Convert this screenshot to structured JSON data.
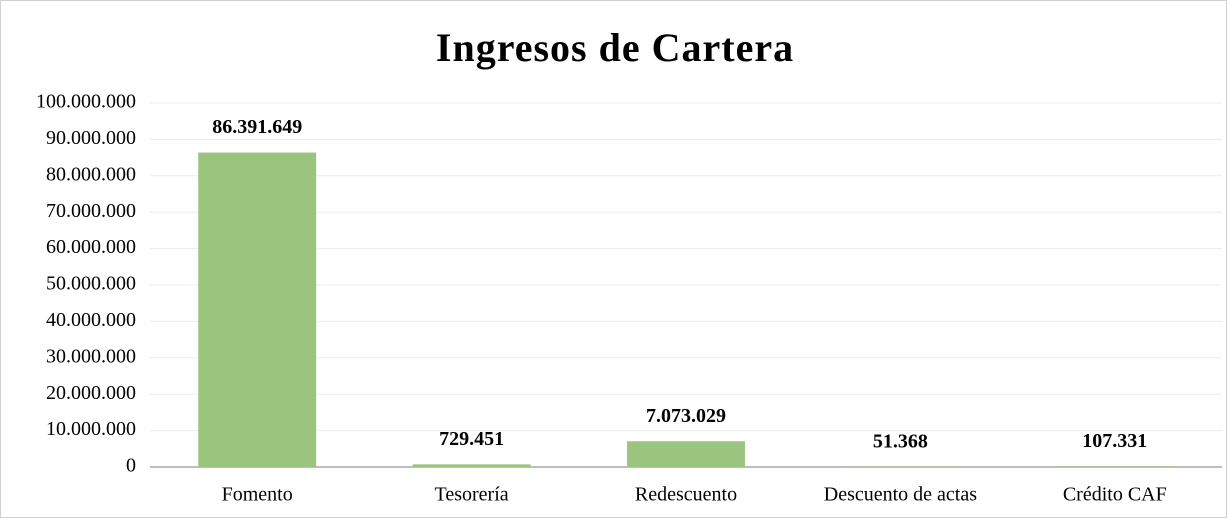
{
  "chart_data": {
    "type": "bar",
    "title": "Ingresos de Cartera",
    "categories": [
      "Fomento",
      "Tesorería",
      "Redescuento",
      "Descuento de actas",
      "Crédito CAF"
    ],
    "values": [
      86391649,
      729451,
      7073029,
      51368,
      107331
    ],
    "value_labels": [
      "86.391.649",
      "729.451",
      "7.073.029",
      "51.368",
      "107.331"
    ],
    "color": "#9bc47f",
    "ylim": [
      0,
      100000000
    ],
    "yticks": [
      0,
      {
        "value": 10000000,
        "label": "10.000.000"
      },
      {
        "value": 20000000,
        "label": "20.000.000"
      },
      {
        "value": 30000000,
        "label": "30.000.000"
      },
      {
        "value": 40000000,
        "label": "40.000.000"
      },
      {
        "value": 50000000,
        "label": "50.000.000"
      },
      {
        "value": 60000000,
        "label": "60.000.000"
      },
      {
        "value": 70000000,
        "label": "70.000.000"
      },
      {
        "value": 80000000,
        "label": "80.000.000"
      },
      {
        "value": 90000000,
        "label": "90.000.000"
      },
      {
        "value": 100000000,
        "label": "100.000.000"
      }
    ],
    "grid": true
  }
}
